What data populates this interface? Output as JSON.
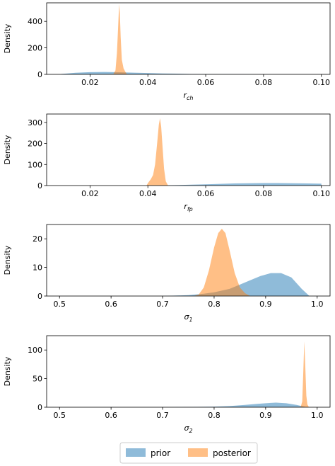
{
  "legend": {
    "items": [
      {
        "label": "prior",
        "color": "#1f77b4"
      },
      {
        "label": "posterior",
        "color": "#ff7f0e"
      }
    ]
  },
  "chart_data": [
    {
      "type": "area",
      "ylabel": "Density",
      "xlabel_main": "r",
      "xlabel_sub": "ch",
      "xlim": [
        0.005,
        0.103
      ],
      "ylim": [
        0,
        540
      ],
      "xticks": [
        0.02,
        0.04,
        0.06,
        0.08,
        0.1
      ],
      "xtick_labels": [
        "0.02",
        "0.04",
        "0.06",
        "0.08",
        "0.10"
      ],
      "yticks": [
        0,
        200,
        400
      ],
      "ytick_labels": [
        "0",
        "200",
        "400"
      ],
      "series": [
        {
          "name": "prior",
          "x": [
            0.01,
            0.015,
            0.02,
            0.025,
            0.03,
            0.035,
            0.04,
            0.045,
            0.05,
            0.055,
            0.06,
            0.07,
            0.08,
            0.09,
            0.1
          ],
          "y": [
            3,
            12,
            17,
            18,
            16,
            13,
            10,
            7,
            5,
            3,
            2,
            1,
            0,
            0,
            0
          ]
        },
        {
          "name": "posterior",
          "x": [
            0.028,
            0.0288,
            0.0293,
            0.0296,
            0.0299,
            0.0301,
            0.0303,
            0.0306,
            0.031,
            0.0316,
            0.0322,
            0.0328
          ],
          "y": [
            0,
            30,
            160,
            300,
            450,
            530,
            470,
            280,
            110,
            45,
            20,
            0
          ]
        }
      ]
    },
    {
      "type": "area",
      "ylabel": "Density",
      "xlabel_main": "r",
      "xlabel_sub": "fp",
      "xlim": [
        0.005,
        0.103
      ],
      "ylim": [
        0,
        340
      ],
      "xticks": [
        0.02,
        0.04,
        0.06,
        0.08,
        0.1
      ],
      "xtick_labels": [
        "0.02",
        "0.04",
        "0.06",
        "0.08",
        "0.10"
      ],
      "yticks": [
        0,
        100,
        200,
        300
      ],
      "ytick_labels": [
        "0",
        "100",
        "200",
        "300"
      ],
      "series": [
        {
          "name": "prior",
          "x": [
            0.04,
            0.045,
            0.05,
            0.055,
            0.06,
            0.065,
            0.07,
            0.075,
            0.08,
            0.085,
            0.09,
            0.095,
            0.1
          ],
          "y": [
            0,
            1,
            2,
            4,
            6,
            8,
            10,
            11,
            12,
            12,
            11,
            10,
            9
          ]
        },
        {
          "name": "posterior",
          "x": [
            0.0395,
            0.0402,
            0.041,
            0.0418,
            0.0425,
            0.0432,
            0.0438,
            0.0442,
            0.0446,
            0.0451,
            0.0456,
            0.0462,
            0.047
          ],
          "y": [
            0,
            15,
            30,
            50,
            100,
            200,
            290,
            320,
            280,
            180,
            80,
            20,
            0
          ]
        }
      ]
    },
    {
      "type": "area",
      "ylabel": "Density",
      "xlabel_main": "σ",
      "xlabel_sub": "1",
      "xlim": [
        0.475,
        1.025
      ],
      "ylim": [
        0,
        25
      ],
      "xticks": [
        0.5,
        0.6,
        0.7,
        0.8,
        0.9,
        1.0
      ],
      "xtick_labels": [
        "0.5",
        "0.6",
        "0.7",
        "0.8",
        "0.9",
        "1.0"
      ],
      "yticks": [
        0,
        10,
        20
      ],
      "ytick_labels": [
        "0",
        "10",
        "20"
      ],
      "series": [
        {
          "name": "prior",
          "x": [
            0.7,
            0.75,
            0.78,
            0.8,
            0.83,
            0.85,
            0.87,
            0.89,
            0.91,
            0.93,
            0.95,
            0.97,
            0.985
          ],
          "y": [
            0,
            0.3,
            0.8,
            1.3,
            2.5,
            4,
            5.5,
            7,
            8,
            8,
            6.5,
            2.5,
            0
          ]
        },
        {
          "name": "posterior",
          "x": [
            0.76,
            0.77,
            0.78,
            0.79,
            0.8,
            0.808,
            0.815,
            0.822,
            0.83,
            0.84,
            0.85,
            0.86,
            0.87
          ],
          "y": [
            0,
            0.5,
            3,
            9,
            17,
            22,
            23.5,
            22,
            16,
            8,
            3,
            1,
            0
          ]
        }
      ]
    },
    {
      "type": "area",
      "ylabel": "Density",
      "xlabel_main": "σ",
      "xlabel_sub": "2",
      "xlim": [
        0.475,
        1.025
      ],
      "ylim": [
        0,
        125
      ],
      "xticks": [
        0.5,
        0.6,
        0.7,
        0.8,
        0.9,
        1.0
      ],
      "xtick_labels": [
        "0.5",
        "0.6",
        "0.7",
        "0.8",
        "0.9",
        "1.0"
      ],
      "yticks": [
        0,
        50,
        100
      ],
      "ytick_labels": [
        "0",
        "50",
        "100"
      ],
      "series": [
        {
          "name": "prior",
          "x": [
            0.7,
            0.75,
            0.8,
            0.83,
            0.86,
            0.88,
            0.9,
            0.92,
            0.94,
            0.96,
            0.98
          ],
          "y": [
            0,
            0.5,
            1,
            2,
            4,
            5.5,
            7,
            8,
            7,
            4,
            0
          ]
        },
        {
          "name": "posterior",
          "x": [
            0.968,
            0.971,
            0.973,
            0.975,
            0.977,
            0.979,
            0.981,
            0.984
          ],
          "y": [
            0,
            10,
            60,
            115,
            70,
            20,
            5,
            0
          ]
        }
      ]
    }
  ]
}
